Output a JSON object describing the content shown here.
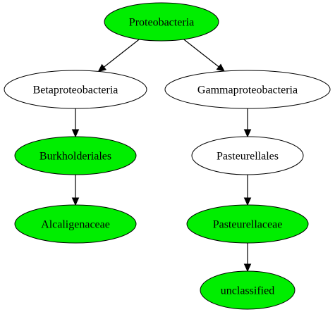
{
  "colors": {
    "highlight_fill": "#00ee00",
    "default_fill": "#ffffff",
    "stroke": "#000000"
  },
  "nodes": [
    {
      "id": "proteobacteria",
      "label": "Proteobacteria",
      "highlighted": true
    },
    {
      "id": "betaproteobacteria",
      "label": "Betaproteobacteria",
      "highlighted": false
    },
    {
      "id": "gammaproteobacteria",
      "label": "Gammaproteobacteria",
      "highlighted": false
    },
    {
      "id": "burkholderiales",
      "label": "Burkholderiales",
      "highlighted": true
    },
    {
      "id": "pasteurellales",
      "label": "Pasteurellales",
      "highlighted": false
    },
    {
      "id": "alcaligenaceae",
      "label": "Alcaligenaceae",
      "highlighted": true
    },
    {
      "id": "pasteurellaceae",
      "label": "Pasteurellaceae",
      "highlighted": true
    },
    {
      "id": "unclassified",
      "label": "unclassified",
      "highlighted": true
    }
  ],
  "edges": [
    {
      "from": "proteobacteria",
      "to": "betaproteobacteria"
    },
    {
      "from": "proteobacteria",
      "to": "gammaproteobacteria"
    },
    {
      "from": "betaproteobacteria",
      "to": "burkholderiales"
    },
    {
      "from": "burkholderiales",
      "to": "alcaligenaceae"
    },
    {
      "from": "gammaproteobacteria",
      "to": "pasteurellales"
    },
    {
      "from": "pasteurellales",
      "to": "pasteurellaceae"
    },
    {
      "from": "pasteurellaceae",
      "to": "unclassified"
    }
  ]
}
